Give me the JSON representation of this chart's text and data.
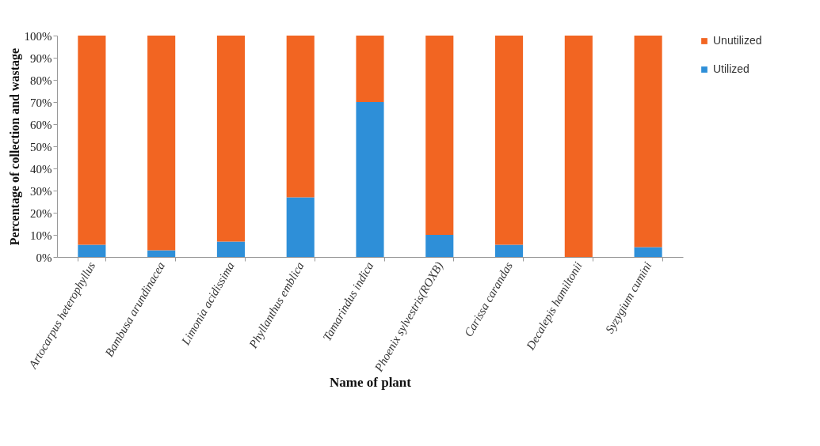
{
  "chart_data": {
    "type": "bar",
    "stacked": true,
    "xlabel": "Name of plant",
    "ylabel": "Percentage of collection and wastage",
    "categories": [
      "Artocarpus heterophyllus",
      "Bambusa arundinacea",
      "Limonia acidissima",
      "Phyllanthus emblica",
      "Tamarindus indica",
      "Phoenix sylvestris(ROXB)",
      "Carissa carandas",
      "Decalepis hamiltonii",
      "Syzygium cumini"
    ],
    "series": [
      {
        "name": "Utilized",
        "color": "#2e8fd8",
        "values": [
          5.5,
          3,
          7,
          27,
          70,
          10,
          5.5,
          0,
          4.5
        ]
      },
      {
        "name": "Unutilized",
        "color": "#f26522",
        "values": [
          94.5,
          97,
          93,
          73,
          30,
          90,
          94.5,
          100,
          95.5
        ]
      }
    ],
    "ylim": [
      0,
      100
    ],
    "yticks": [
      {
        "value": 0,
        "label": "0%"
      },
      {
        "value": 10,
        "label": "10%"
      },
      {
        "value": 20,
        "label": "20%"
      },
      {
        "value": 30,
        "label": "30%"
      },
      {
        "value": 40,
        "label": "40%"
      },
      {
        "value": 50,
        "label": "50%"
      },
      {
        "value": 60,
        "label": "60%"
      },
      {
        "value": 70,
        "label": "70%"
      },
      {
        "value": 80,
        "label": "80%"
      },
      {
        "value": 90,
        "label": "90%"
      },
      {
        "value": 100,
        "label": "100%"
      }
    ],
    "legend": "right",
    "grid": false
  }
}
